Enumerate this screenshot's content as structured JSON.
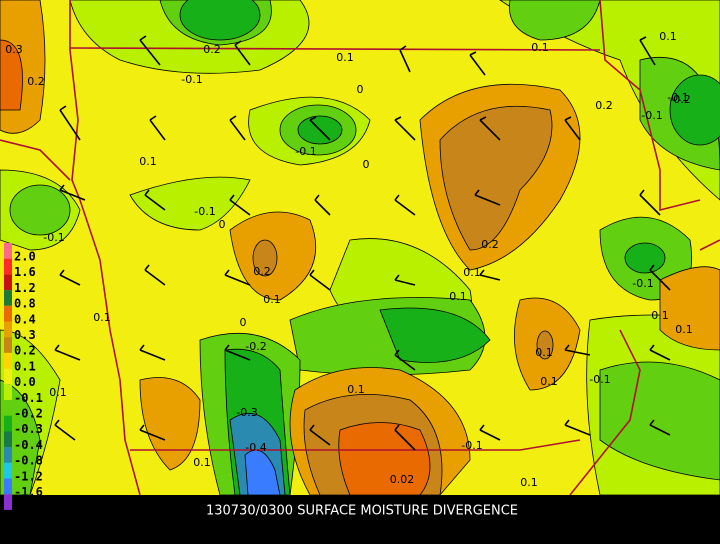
{
  "title": "130730/0300 SURFACE MOISTURE DIVERGENCE",
  "legend": {
    "labels": [
      "2.0",
      "1.6",
      "1.2",
      "0.8",
      "0.4",
      "0.3",
      "0.2",
      "0.1",
      "0.0",
      "-0.1",
      "-0.2",
      "-0.3",
      "-0.4",
      "-0.8",
      "-1.2",
      "-1.6"
    ],
    "colors": [
      "#ff6a8a",
      "#ff2a2a",
      "#c81010",
      "#1e7a3a",
      "#e86a00",
      "#e8a000",
      "#c8861a",
      "#ffd400",
      "#f2ee10",
      "#b8f000",
      "#62d010",
      "#18b018",
      "#1a7a4a",
      "#2a8ab0",
      "#20c8e8",
      "#3a7cff",
      "#8a30d0"
    ]
  },
  "contour_labels": [
    "0.3",
    "0.2",
    "0.2",
    "0.1",
    "-0.1",
    "0.1",
    "0",
    "-0.1",
    "0.1",
    "0.2",
    "-0.1",
    "0.1",
    "-0.1",
    "0",
    "-0.1",
    "0.2",
    "0.1",
    "0.1",
    "0",
    "0.1",
    "-0.1",
    "0.2",
    "0.1",
    "-0.2",
    "-0.3",
    "-0.4",
    "0.1",
    "0",
    "0.1",
    "-0.1",
    "0.1",
    "0.02",
    "0.1",
    "-0.1",
    "0.1",
    "-0.1",
    "-0.2",
    "0.1",
    "0.1",
    "0.1"
  ]
}
